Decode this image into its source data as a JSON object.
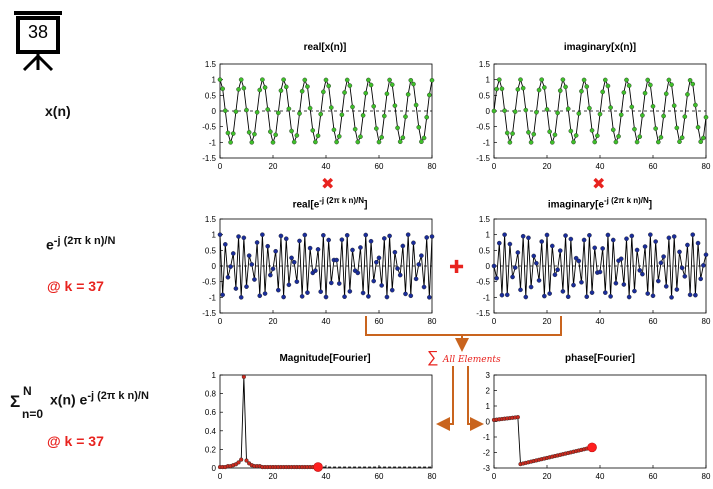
{
  "slide": {
    "number": "38"
  },
  "left_labels": {
    "signal": "x(n)",
    "kernel_base": "e",
    "kernel_exp": "-j (2π k n)/N",
    "kernel_at": "@ k = 37",
    "sum_sigma": "Σ",
    "sum_upper": "N",
    "sum_lower": "n=0",
    "sum_body": "x(n) e",
    "sum_exp": "-j (2π k n)/N",
    "sum_at": "@ k = 37"
  },
  "operators": {
    "multiply": "✖",
    "add": "✚",
    "sum_symbol": "∑",
    "sum_text": "All Elements"
  },
  "colors": {
    "signal_marker": "#3fbf2a",
    "kernel_marker": "#1a2d9a",
    "spectrum_marker": "#cc2a1e",
    "operator_red": "#e8231f",
    "arrow_orange": "#c9641e"
  },
  "chart_data": [
    {
      "id": "real_x",
      "type": "line",
      "title": "real[x(n)]",
      "xlim": [
        0,
        80
      ],
      "ylim": [
        -1.5,
        1.5
      ],
      "xticks": [
        0,
        20,
        40,
        60,
        80
      ],
      "yticks": [
        1.5,
        1,
        0.5,
        0,
        -0.5,
        -1,
        -1.5
      ],
      "ytick_labels": [
        "1.5",
        "1",
        "0.5",
        "0",
        "-0.5",
        "-1",
        "-1.5"
      ],
      "x": [
        0,
        1,
        2,
        3,
        4,
        5,
        6,
        7,
        8,
        9,
        10,
        11,
        12,
        13,
        14,
        15,
        16,
        17,
        18,
        19,
        20,
        21,
        22,
        23,
        24,
        25,
        26,
        27,
        28,
        29,
        30,
        31,
        32,
        33,
        34,
        35,
        36,
        37,
        38,
        39,
        40,
        41,
        42,
        43,
        44,
        45,
        46,
        47,
        48,
        49,
        50,
        51,
        52,
        53,
        54,
        55,
        56,
        57,
        58,
        59,
        60,
        61,
        62,
        63,
        64,
        65,
        66,
        67,
        68,
        69,
        70,
        71,
        72,
        73,
        74,
        75,
        76,
        77,
        78,
        79,
        80
      ],
      "y": [
        1,
        0.71,
        0.01,
        -0.7,
        -1,
        -0.72,
        -0.02,
        0.69,
        1,
        0.73,
        0.03,
        -0.68,
        -1,
        -0.74,
        -0.04,
        0.67,
        1,
        0.75,
        0.05,
        -0.66,
        -1,
        -0.76,
        -0.06,
        0.65,
        1,
        0.77,
        0.07,
        -0.64,
        -0.99,
        -0.78,
        -0.08,
        0.63,
        0.99,
        0.78,
        0.09,
        -0.62,
        -0.99,
        -0.79,
        -0.1,
        0.61,
        0.99,
        0.8,
        0.11,
        -0.6,
        -0.99,
        -0.81,
        -0.12,
        0.59,
        0.99,
        0.81,
        0.13,
        -0.58,
        -0.99,
        -0.82,
        -0.14,
        0.57,
        0.99,
        0.83,
        0.15,
        -0.56,
        -0.99,
        -0.84,
        -0.16,
        0.55,
        0.99,
        0.84,
        0.17,
        -0.54,
        -0.98,
        -0.85,
        -0.18,
        0.53,
        0.98,
        0.86,
        0.19,
        -0.52,
        -0.98,
        -0.86,
        -0.2,
        0.51,
        0.98
      ]
    },
    {
      "id": "imag_x",
      "type": "line",
      "title": "imaginary[x(n)]",
      "xlim": [
        0,
        80
      ],
      "ylim": [
        -1.5,
        1.5
      ],
      "xticks": [
        0,
        20,
        40,
        60,
        80
      ],
      "yticks": [
        1.5,
        1,
        0.5,
        0,
        -0.5,
        -1,
        -1.5
      ],
      "ytick_labels": [
        "1.5",
        "1",
        "0.5",
        "0",
        "-0.5",
        "-1",
        "-1.5"
      ],
      "x": [
        0,
        1,
        2,
        3,
        4,
        5,
        6,
        7,
        8,
        9,
        10,
        11,
        12,
        13,
        14,
        15,
        16,
        17,
        18,
        19,
        20,
        21,
        22,
        23,
        24,
        25,
        26,
        27,
        28,
        29,
        30,
        31,
        32,
        33,
        34,
        35,
        36,
        37,
        38,
        39,
        40,
        41,
        42,
        43,
        44,
        45,
        46,
        47,
        48,
        49,
        50,
        51,
        52,
        53,
        54,
        55,
        56,
        57,
        58,
        59,
        60,
        61,
        62,
        63,
        64,
        65,
        66,
        67,
        68,
        69,
        70,
        71,
        72,
        73,
        74,
        75,
        76,
        77,
        78,
        79,
        80
      ],
      "y": [
        0,
        0.7,
        1,
        0.71,
        0.01,
        -0.7,
        -1,
        -0.72,
        -0.02,
        0.69,
        1,
        0.73,
        0.03,
        -0.68,
        -1,
        -0.74,
        -0.04,
        0.67,
        1,
        0.75,
        0.05,
        -0.66,
        -1,
        -0.76,
        -0.06,
        0.65,
        1,
        0.77,
        0.07,
        -0.64,
        -0.99,
        -0.78,
        -0.08,
        0.63,
        0.99,
        0.78,
        0.09,
        -0.62,
        -0.99,
        -0.79,
        -0.1,
        0.61,
        0.99,
        0.8,
        0.11,
        -0.6,
        -0.99,
        -0.81,
        -0.12,
        0.59,
        0.99,
        0.81,
        0.13,
        -0.58,
        -0.99,
        -0.82,
        -0.14,
        0.57,
        0.99,
        0.83,
        0.15,
        -0.56,
        -0.99,
        -0.84,
        -0.16,
        0.55,
        0.99,
        0.84,
        0.17,
        -0.54,
        -0.98,
        -0.85,
        -0.18,
        0.53,
        0.98,
        0.86,
        0.19,
        -0.52,
        -0.98,
        -0.86,
        -0.2
      ]
    },
    {
      "id": "real_kernel",
      "type": "line",
      "title": "real[e",
      "title_sup": "-j (2π k n)/N",
      "title_end": "]",
      "xlim": [
        0,
        80
      ],
      "ylim": [
        -1.5,
        1.5
      ],
      "xticks": [
        0,
        20,
        40,
        60,
        80
      ],
      "yticks": [
        1.5,
        1,
        0.5,
        0,
        -0.5,
        -1,
        -1.5
      ],
      "ytick_labels": [
        "1.5",
        "1",
        "0.5",
        "0",
        "-0.5",
        "-1",
        "-1.5"
      ],
      "x": [
        0,
        1,
        2,
        3,
        4,
        5,
        6,
        7,
        8,
        9,
        10,
        11,
        12,
        13,
        14,
        15,
        16,
        17,
        18,
        19,
        20,
        21,
        22,
        23,
        24,
        25,
        26,
        27,
        28,
        29,
        30,
        31,
        32,
        33,
        34,
        35,
        36,
        37,
        38,
        39,
        40,
        41,
        42,
        43,
        44,
        45,
        46,
        47,
        48,
        49,
        50,
        51,
        52,
        53,
        54,
        55,
        56,
        57,
        58,
        59,
        60,
        61,
        62,
        63,
        64,
        65,
        66,
        67,
        68,
        69,
        70,
        71,
        72,
        73,
        74,
        75,
        76,
        77,
        78,
        79,
        80
      ],
      "y": [
        1,
        -0.92,
        0.69,
        -0.36,
        -0.02,
        0.4,
        -0.72,
        0.94,
        -1,
        0.9,
        -0.66,
        0.33,
        0.05,
        -0.43,
        0.75,
        -0.95,
        1,
        -0.88,
        0.63,
        -0.29,
        -0.09,
        0.47,
        -0.77,
        0.96,
        -0.99,
        0.87,
        -0.6,
        0.26,
        0.12,
        -0.5,
        0.8,
        -0.97,
        0.99,
        -0.85,
        0.57,
        -0.22,
        -0.15,
        0.53,
        -0.82,
        0.98,
        -0.99,
        0.83,
        -0.54,
        0.19,
        0.19,
        -0.56,
        0.84,
        -0.98,
        0.98,
        -0.81,
        0.51,
        -0.15,
        -0.22,
        0.59,
        -0.86,
        0.99,
        -0.97,
        0.79,
        -0.48,
        0.12,
        0.26,
        -0.62,
        0.88,
        -0.99,
        0.96,
        -0.77,
        0.44,
        -0.08,
        -0.29,
        0.64,
        -0.89,
        1,
        -0.95,
        0.74,
        -0.41,
        0.05,
        0.33,
        -0.67,
        0.91,
        -1,
        0.94
      ]
    },
    {
      "id": "imag_kernel",
      "type": "line",
      "title": "imaginary[e",
      "title_sup": "-j (2π k n)/N",
      "title_end": "]",
      "xlim": [
        0,
        80
      ],
      "ylim": [
        -1.5,
        1.5
      ],
      "xticks": [
        0,
        20,
        40,
        60,
        80
      ],
      "yticks": [
        1.5,
        1,
        0.5,
        0,
        -0.5,
        -1,
        -1.5
      ],
      "ytick_labels": [
        "1.5",
        "1",
        "0.5",
        "0",
        "-0.5",
        "-1",
        "-1.5"
      ],
      "x": [
        0,
        1,
        2,
        3,
        4,
        5,
        6,
        7,
        8,
        9,
        10,
        11,
        12,
        13,
        14,
        15,
        16,
        17,
        18,
        19,
        20,
        21,
        22,
        23,
        24,
        25,
        26,
        27,
        28,
        29,
        30,
        31,
        32,
        33,
        34,
        35,
        36,
        37,
        38,
        39,
        40,
        41,
        42,
        43,
        44,
        45,
        46,
        47,
        48,
        49,
        50,
        51,
        52,
        53,
        54,
        55,
        56,
        57,
        58,
        59,
        60,
        61,
        62,
        63,
        64,
        65,
        66,
        67,
        68,
        69,
        70,
        71,
        72,
        73,
        74,
        75,
        76,
        77,
        78,
        79,
        80
      ],
      "y": [
        0,
        -0.39,
        0.73,
        -0.93,
        1,
        -0.92,
        0.7,
        -0.35,
        -0.05,
        0.43,
        -0.76,
        0.95,
        -0.99,
        0.9,
        -0.67,
        0.32,
        0.09,
        -0.46,
        0.78,
        -0.96,
        0.99,
        -0.88,
        0.64,
        -0.28,
        -0.12,
        0.49,
        -0.81,
        0.97,
        -0.98,
        0.86,
        -0.61,
        0.25,
        0.16,
        -0.52,
        0.83,
        -0.98,
        0.98,
        -0.85,
        0.58,
        -0.21,
        -0.19,
        0.56,
        -0.85,
        0.99,
        -0.97,
        0.83,
        -0.55,
        0.17,
        0.23,
        -0.59,
        0.87,
        -0.99,
        0.96,
        -0.8,
        0.51,
        -0.14,
        -0.26,
        0.62,
        -0.88,
        1,
        -0.95,
        0.78,
        -0.48,
        0.1,
        0.3,
        -0.65,
        0.9,
        -1,
        0.94,
        -0.75,
        0.45,
        -0.06,
        -0.33,
        0.67,
        -0.92,
        1,
        -0.93,
        0.73,
        -0.41,
        0.02,
        0.36
      ]
    },
    {
      "id": "magnitude",
      "type": "line",
      "title": "Magnitude[Fourier]",
      "xlim": [
        0,
        80
      ],
      "ylim": [
        0,
        1
      ],
      "xticks": [
        0,
        20,
        40,
        60,
        80
      ],
      "yticks": [
        1,
        0.8,
        0.6,
        0.4,
        0.2,
        0
      ],
      "ytick_labels": [
        "1",
        "0.8",
        "0.6",
        "0.4",
        "0.2",
        "0"
      ],
      "x": [
        0,
        1,
        2,
        3,
        4,
        5,
        6,
        7,
        8,
        9,
        10,
        11,
        12,
        13,
        14,
        15,
        16,
        17,
        18,
        19,
        20,
        21,
        22,
        23,
        24,
        25,
        26,
        27,
        28,
        29,
        30,
        31,
        32,
        33,
        34,
        35,
        36,
        37
      ],
      "y": [
        0.01,
        0.01,
        0.01,
        0.02,
        0.02,
        0.03,
        0.04,
        0.06,
        0.09,
        0.98,
        0.08,
        0.05,
        0.03,
        0.02,
        0.02,
        0.02,
        0.01,
        0.01,
        0.01,
        0.01,
        0.01,
        0.01,
        0.01,
        0.01,
        0.01,
        0.01,
        0.01,
        0.01,
        0.01,
        0.01,
        0.01,
        0.01,
        0.01,
        0.01,
        0.01,
        0.01,
        0.01,
        0.01
      ],
      "highlight_x": 37,
      "highlight_y": 0.01,
      "tail_dashed_to": 80
    },
    {
      "id": "phase",
      "type": "line",
      "title": "phase[Fourier]",
      "xlim": [
        0,
        80
      ],
      "ylim": [
        -3,
        3
      ],
      "xticks": [
        0,
        20,
        40,
        60,
        80
      ],
      "yticks": [
        3,
        2,
        1,
        0,
        -1,
        -2,
        -3
      ],
      "ytick_labels": [
        "3",
        "2",
        "1",
        "0",
        "-1",
        "-2",
        "-3"
      ],
      "x": [
        0,
        1,
        2,
        3,
        4,
        5,
        6,
        7,
        8,
        9,
        10,
        11,
        12,
        13,
        14,
        15,
        16,
        17,
        18,
        19,
        20,
        21,
        22,
        23,
        24,
        25,
        26,
        27,
        28,
        29,
        30,
        31,
        32,
        33,
        34,
        35,
        36,
        37
      ],
      "y": [
        0.1,
        0.12,
        0.14,
        0.16,
        0.18,
        0.2,
        0.22,
        0.24,
        0.26,
        0.28,
        -2.75,
        -2.71,
        -2.67,
        -2.63,
        -2.59,
        -2.55,
        -2.51,
        -2.47,
        -2.43,
        -2.39,
        -2.35,
        -2.31,
        -2.27,
        -2.23,
        -2.19,
        -2.15,
        -2.11,
        -2.07,
        -2.03,
        -1.99,
        -1.95,
        -1.91,
        -1.87,
        -1.83,
        -1.79,
        -1.75,
        -1.71,
        -1.67
      ],
      "highlight_x": 37,
      "highlight_y": -1.67
    }
  ]
}
